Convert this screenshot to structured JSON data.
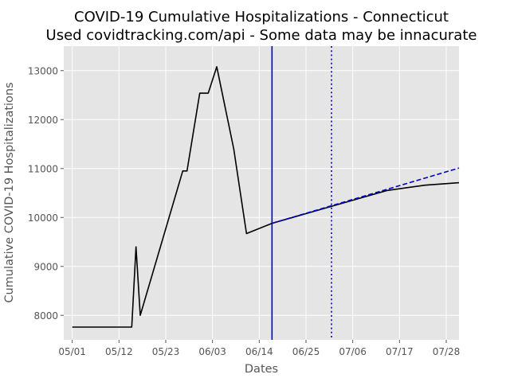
{
  "chart_data": {
    "type": "line",
    "title": [
      "COVID-19 Cumulative Hospitalizations - Connecticut",
      "Used covidtracking.com/api - Some data may be innacurate"
    ],
    "xlabel": "Dates",
    "ylabel": "Cumulative COVID-19 Hospitalizations",
    "x_type": "date",
    "x_ticks": [
      "2020-05-01",
      "2020-05-12",
      "2020-05-23",
      "2020-06-03",
      "2020-06-14",
      "2020-06-25",
      "2020-07-06",
      "2020-07-17",
      "2020-07-28"
    ],
    "x_tick_labels": [
      "05/01",
      "05/12",
      "05/23",
      "06/03",
      "06/14",
      "06/25",
      "07/06",
      "07/17",
      "07/28"
    ],
    "xlim": [
      "2020-04-29",
      "2020-07-31"
    ],
    "y_ticks": [
      8000,
      9000,
      10000,
      11000,
      12000,
      13000
    ],
    "ylim": [
      7500,
      13500
    ],
    "grid": true,
    "style": "ggplot",
    "series": [
      {
        "style": "solid",
        "color": "#000000",
        "points": [
          {
            "x": "2020-05-01",
            "y": 7760
          },
          {
            "x": "2020-05-15",
            "y": 7760
          },
          {
            "x": "2020-05-16",
            "y": 9400
          },
          {
            "x": "2020-05-17",
            "y": 8000
          },
          {
            "x": "2020-05-27",
            "y": 10950
          },
          {
            "x": "2020-05-28",
            "y": 10950
          },
          {
            "x": "2020-05-31",
            "y": 12540
          },
          {
            "x": "2020-06-02",
            "y": 12540
          },
          {
            "x": "2020-06-04",
            "y": 13080
          },
          {
            "x": "2020-06-08",
            "y": 11400
          },
          {
            "x": "2020-06-11",
            "y": 9670
          },
          {
            "x": "2020-06-17",
            "y": 9880
          },
          {
            "x": "2020-07-14",
            "y": 10550
          },
          {
            "x": "2020-07-23",
            "y": 10660
          },
          {
            "x": "2020-07-31",
            "y": 10710
          }
        ]
      },
      {
        "style": "dashed",
        "color": "#0000cc",
        "points": [
          {
            "x": "2020-06-17",
            "y": 9880
          },
          {
            "x": "2020-07-31",
            "y": 11010
          }
        ]
      }
    ],
    "vertical_lines": [
      {
        "x": "2020-06-17",
        "style": "solid",
        "color": "#0000cc"
      },
      {
        "x": "2020-07-01",
        "style": "dotted",
        "color": "#0000cc"
      }
    ]
  }
}
